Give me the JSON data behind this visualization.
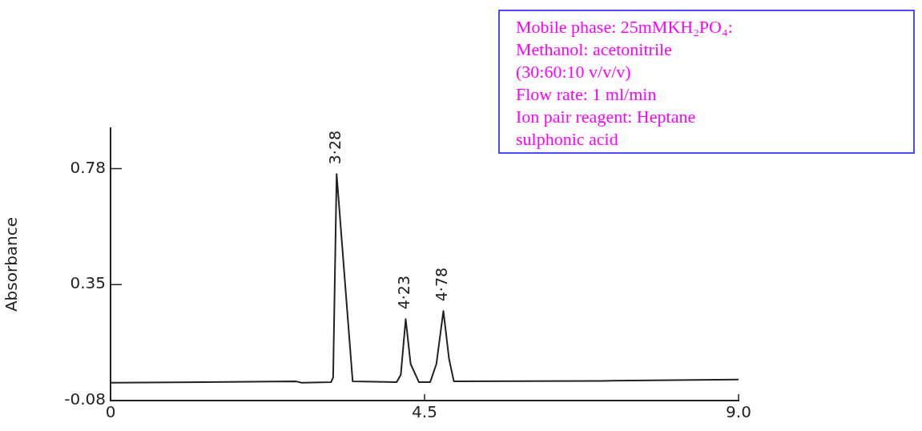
{
  "chart_data": {
    "type": "line",
    "ylabel": "Absorbance",
    "x": [
      0,
      2.66,
      2.74,
      3.16,
      3.19,
      3.24,
      3.47,
      4.1,
      4.16,
      4.23,
      4.3,
      4.42,
      4.58,
      4.67,
      4.77,
      4.85,
      4.92,
      7.03,
      9.0
    ],
    "series": [
      {
        "color": "#222222",
        "values": [
          -0.014,
          -0.009,
          -0.014,
          -0.012,
          0.006,
          0.76,
          -0.009,
          -0.012,
          0.016,
          0.222,
          0.056,
          -0.012,
          -0.012,
          0.056,
          0.252,
          0.076,
          -0.009,
          -0.007,
          -0.002
        ]
      }
    ],
    "xlim": [
      0,
      9
    ],
    "ylim": [
      -0.08,
      0.93
    ],
    "xticks": [
      0,
      4.5,
      {
        "value": 9,
        "label": "9.0"
      }
    ],
    "yticks": [
      -0.08,
      0.35,
      0.78
    ],
    "marker": "none",
    "line_style": "solid",
    "annotations": [
      {
        "text": "3·28",
        "x": 3.24,
        "y": 0.76
      },
      {
        "text": "4·23",
        "x": 4.23,
        "y": 0.222
      },
      {
        "text": "4·78",
        "x": 4.77,
        "y": 0.252
      },
      "Mobile phase: 25mMKH₂PO₄:",
      "Methanol: acetonitrile",
      "(30:60:10 v/v/v)",
      "Flow rate: 1 ml/min",
      "Ion pair reagent: Heptane",
      "sulphonic acid"
    ]
  }
}
